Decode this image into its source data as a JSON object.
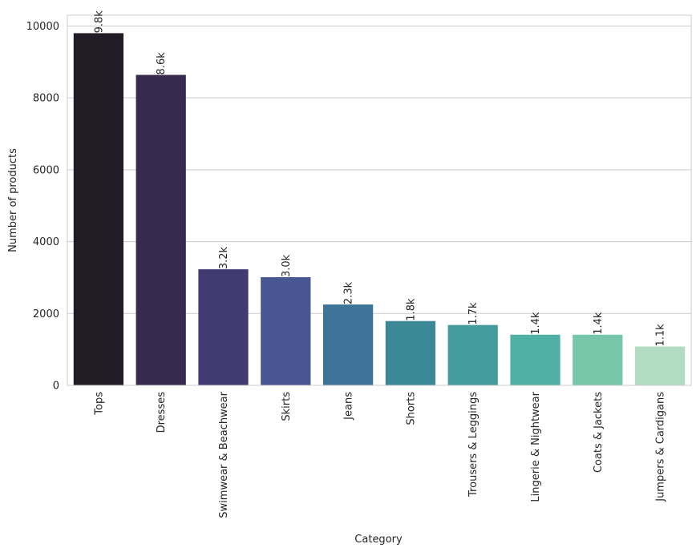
{
  "chart_data": {
    "type": "bar",
    "title": "",
    "xlabel": "Category",
    "ylabel": "Number of products",
    "categories": [
      "Tops",
      "Dresses",
      "Swimwear & Beachwear",
      "Skirts",
      "Jeans",
      "Shorts",
      "Trousers & Leggings",
      "Lingerie & Nightwear",
      "Coats & Jackets",
      "Jumpers & Cardigans"
    ],
    "values": [
      9800,
      8640,
      3230,
      3010,
      2250,
      1790,
      1680,
      1410,
      1410,
      1080
    ],
    "value_labels": [
      "9.8k",
      "8.6k",
      "3.2k",
      "3.0k",
      "2.3k",
      "1.8k",
      "1.7k",
      "1.4k",
      "1.4k",
      "1.1k"
    ],
    "ylim": [
      0,
      10300
    ],
    "yticks": [
      0,
      2000,
      4000,
      6000,
      8000,
      10000
    ],
    "ytick_labels": [
      "0",
      "2000",
      "4000",
      "6000",
      "8000",
      "10000"
    ],
    "grid": true,
    "colors": [
      "#211b26",
      "#382a4e",
      "#423b72",
      "#485693",
      "#3f7499",
      "#3b8897",
      "#459c9f",
      "#50b0a5",
      "#76c7a9",
      "#b2dcc1"
    ]
  }
}
